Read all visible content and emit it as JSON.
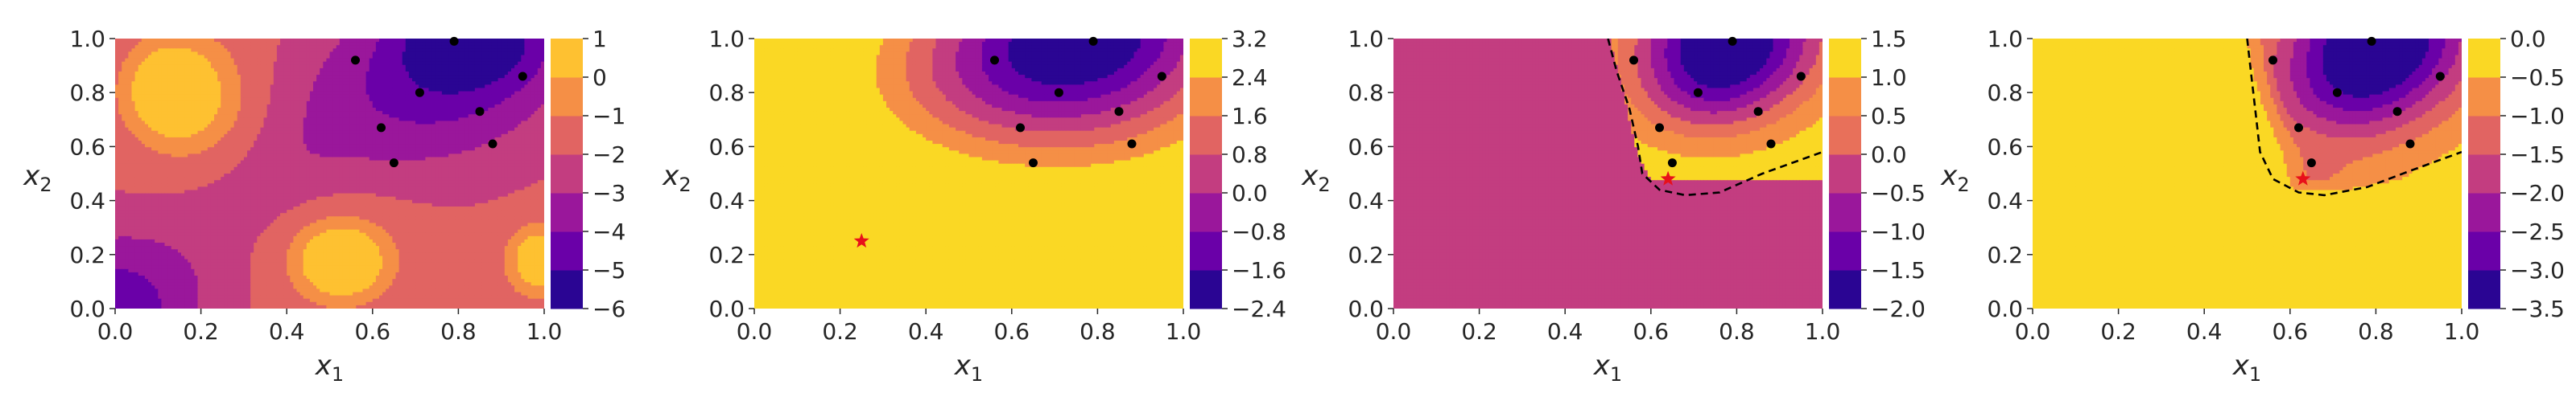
{
  "chart_data": [
    {
      "type": "contour",
      "title": "",
      "xlabel": "x",
      "xlabel_sub": "1",
      "ylabel": "x",
      "ylabel_sub": "2",
      "xlim": [
        0,
        1
      ],
      "ylim": [
        0,
        1
      ],
      "xticks": [
        "0.0",
        "0.2",
        "0.4",
        "0.6",
        "0.8",
        "1.0"
      ],
      "yticks": [
        "0.0",
        "0.2",
        "0.4",
        "0.6",
        "0.8",
        "1.0"
      ],
      "colorbar": {
        "levels": [
          -6,
          -5,
          -4,
          -3,
          -2,
          -1,
          0,
          1
        ],
        "labels": [
          "−6",
          "−5",
          "−4",
          "−3",
          "−2",
          "−1",
          "0",
          "1"
        ],
        "colors": [
          "#2a0593",
          "#6a00a8",
          "#9a179b",
          "#c33d80",
          "#e16462",
          "#f58f46",
          "#fec131"
        ]
      },
      "field": "f1",
      "points": [
        [
          0.56,
          0.92
        ],
        [
          0.71,
          0.8
        ],
        [
          0.79,
          0.99
        ],
        [
          0.95,
          0.86
        ],
        [
          0.62,
          0.67
        ],
        [
          0.85,
          0.73
        ],
        [
          0.65,
          0.54
        ],
        [
          0.88,
          0.61
        ]
      ],
      "star": null,
      "dashed_boundary": false
    },
    {
      "type": "contour",
      "title": "",
      "xlabel": "x",
      "xlabel_sub": "1",
      "ylabel": "x",
      "ylabel_sub": "2",
      "xlim": [
        0,
        1
      ],
      "ylim": [
        0,
        1
      ],
      "xticks": [
        "0.0",
        "0.2",
        "0.4",
        "0.6",
        "0.8",
        "1.0"
      ],
      "yticks": [
        "0.0",
        "0.2",
        "0.4",
        "0.6",
        "0.8",
        "1.0"
      ],
      "colorbar": {
        "levels": [
          -2.4,
          -1.6,
          -0.8,
          0.0,
          0.8,
          1.6,
          2.4,
          3.2
        ],
        "labels": [
          "−2.4",
          "−1.6",
          "−0.8",
          "0.0",
          "0.8",
          "1.6",
          "2.4",
          "3.2"
        ],
        "colors": [
          "#2a0593",
          "#6a00a8",
          "#9a179b",
          "#c33d80",
          "#e16462",
          "#f58f46",
          "#fad824"
        ]
      },
      "field": "f2",
      "points": [
        [
          0.56,
          0.92
        ],
        [
          0.71,
          0.8
        ],
        [
          0.79,
          0.99
        ],
        [
          0.95,
          0.86
        ],
        [
          0.62,
          0.67
        ],
        [
          0.85,
          0.73
        ],
        [
          0.65,
          0.54
        ],
        [
          0.88,
          0.61
        ]
      ],
      "star": [
        0.25,
        0.25
      ],
      "dashed_boundary": false
    },
    {
      "type": "contour",
      "title": "",
      "xlabel": "x",
      "xlabel_sub": "1",
      "ylabel": "x",
      "ylabel_sub": "2",
      "xlim": [
        0,
        1
      ],
      "ylim": [
        0,
        1
      ],
      "xticks": [
        "0.0",
        "0.2",
        "0.4",
        "0.6",
        "0.8",
        "1.0"
      ],
      "yticks": [
        "0.0",
        "0.2",
        "0.4",
        "0.6",
        "0.8",
        "1.0"
      ],
      "colorbar": {
        "levels": [
          -2.0,
          -1.5,
          -1.0,
          -0.5,
          0.0,
          0.5,
          1.0,
          1.5
        ],
        "labels": [
          "−2.0",
          "−1.5",
          "−1.0",
          "−0.5",
          "0.0",
          "0.5",
          "1.0",
          "1.5"
        ],
        "colors": [
          "#2a0593",
          "#6a00a8",
          "#9a179b",
          "#c33d80",
          "#e8705a",
          "#f58f46",
          "#fad824"
        ]
      },
      "field": "f3",
      "points": [
        [
          0.56,
          0.92
        ],
        [
          0.71,
          0.8
        ],
        [
          0.79,
          0.99
        ],
        [
          0.95,
          0.86
        ],
        [
          0.62,
          0.67
        ],
        [
          0.85,
          0.73
        ],
        [
          0.65,
          0.54
        ],
        [
          0.88,
          0.61
        ]
      ],
      "star": [
        0.64,
        0.48
      ],
      "dashed_boundary": true
    },
    {
      "type": "contour",
      "title": "",
      "xlabel": "x",
      "xlabel_sub": "1",
      "ylabel": "x",
      "ylabel_sub": "2",
      "xlim": [
        0,
        1
      ],
      "ylim": [
        0,
        1
      ],
      "xticks": [
        "0.0",
        "0.2",
        "0.4",
        "0.6",
        "0.8",
        "1.0"
      ],
      "yticks": [
        "0.0",
        "0.2",
        "0.4",
        "0.6",
        "0.8",
        "1.0"
      ],
      "colorbar": {
        "levels": [
          -3.5,
          -3.0,
          -2.5,
          -2.0,
          -1.5,
          -1.0,
          -0.5,
          0.0
        ],
        "labels": [
          "−3.5",
          "−3.0",
          "−2.5",
          "−2.0",
          "−1.5",
          "−1.0",
          "−0.5",
          "0.0"
        ],
        "colors": [
          "#2a0593",
          "#6a00a8",
          "#9a179b",
          "#c33d80",
          "#e16462",
          "#f58f46",
          "#fad824"
        ]
      },
      "field": "f4",
      "points": [
        [
          0.56,
          0.92
        ],
        [
          0.71,
          0.8
        ],
        [
          0.79,
          0.99
        ],
        [
          0.95,
          0.86
        ],
        [
          0.62,
          0.67
        ],
        [
          0.85,
          0.73
        ],
        [
          0.65,
          0.54
        ],
        [
          0.88,
          0.61
        ]
      ],
      "star": [
        0.63,
        0.48
      ],
      "dashed_boundary": true
    }
  ]
}
